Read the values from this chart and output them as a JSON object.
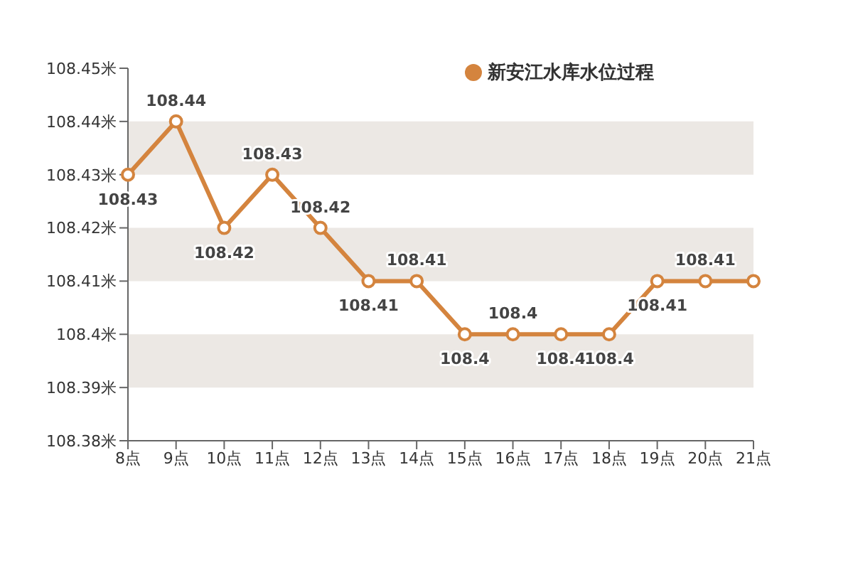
{
  "chart_data": {
    "type": "line",
    "categories": [
      "8点",
      "9点",
      "10点",
      "11点",
      "12点",
      "13点",
      "14点",
      "15点",
      "16点",
      "17点",
      "18点",
      "19点",
      "20点",
      "21点"
    ],
    "series": [
      {
        "name": "新安江水库水位过程",
        "color": "#d4843e",
        "values": [
          108.43,
          108.44,
          108.42,
          108.43,
          108.42,
          108.41,
          108.41,
          108.4,
          108.4,
          108.4,
          108.4,
          108.41,
          108.41,
          108.41
        ],
        "value_labels": [
          "108.43",
          "108.44",
          "108.42",
          "108.43",
          "108.42",
          "108.41",
          "108.41",
          "108.4",
          "108.4",
          "108.4",
          "108.4",
          "108.41",
          "108.41",
          null
        ]
      }
    ],
    "ylim": [
      108.38,
      108.45
    ],
    "yticks": [
      {
        "value": 108.38,
        "label": "108.38米"
      },
      {
        "value": 108.39,
        "label": "108.39米"
      },
      {
        "value": 108.4,
        "label": "108.4米"
      },
      {
        "value": 108.41,
        "label": "108.41米"
      },
      {
        "value": 108.42,
        "label": "108.42米"
      },
      {
        "value": 108.43,
        "label": "108.43米"
      },
      {
        "value": 108.44,
        "label": "108.44米"
      },
      {
        "value": 108.45,
        "label": "108.45米"
      }
    ],
    "bands": [
      {
        "axis": "y",
        "from": 108.43,
        "to": 108.44,
        "color": "#ece8e4"
      },
      {
        "axis": "y",
        "from": 108.41,
        "to": 108.42,
        "color": "#ece8e4"
      },
      {
        "axis": "y",
        "from": 108.39,
        "to": 108.4,
        "color": "#ece8e4"
      }
    ],
    "legend": "top right",
    "marker": "circle",
    "line_style": "solid",
    "grid": false
  }
}
